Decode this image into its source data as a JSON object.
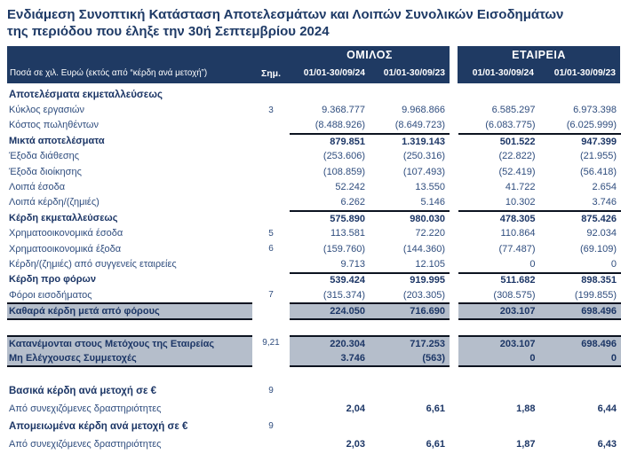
{
  "title": {
    "line1": "Ενδιάμεση Συνοπτική Κατάσταση Αποτελεσμάτων και Λοιπών Συνολικών Εισοδημάτων",
    "line2": "της περιόδου που έληξε την 30ή Σεπτεμβρίου 2024"
  },
  "header": {
    "measure_label": "Ποσά σε χιλ. Ευρώ (εκτός από “κέρδη ανά μετοχή”)",
    "note_label": "Σημ.",
    "group1": "ΟΜΙΛΟΣ",
    "group2": "ΕΤΑΙΡΕΙΑ",
    "periods": [
      "01/01-30/09/24",
      "01/01-30/09/23"
    ]
  },
  "colors": {
    "navy": "#1f3a63",
    "highlight": "#b5becb",
    "text_regular": "#2f4d7e",
    "text_bold": "#1c3666",
    "rule_line": "#0c1320"
  },
  "rows": [
    {
      "style": "section",
      "label": "Αποτελέσματα εκμεταλλεύσεως",
      "note": "",
      "values": [
        "",
        "",
        "",
        ""
      ]
    },
    {
      "style": "normal",
      "label": "Κύκλος εργασιών",
      "note": "3",
      "values": [
        "9.368.777",
        "9.968.866",
        "6.585.297",
        "6.973.398"
      ]
    },
    {
      "style": "normal",
      "label": "Κόστος πωληθέντων",
      "note": "",
      "values": [
        "(8.488.926)",
        "(8.649.723)",
        "(6.083.775)",
        "(6.025.999)"
      ]
    },
    {
      "style": "total",
      "label": "Μικτά αποτελέσματα",
      "note": "",
      "values": [
        "879.851",
        "1.319.143",
        "501.522",
        "947.399"
      ]
    },
    {
      "style": "normal",
      "label": "Έξοδα διάθεσης",
      "note": "",
      "values": [
        "(253.606)",
        "(250.316)",
        "(22.822)",
        "(21.955)"
      ]
    },
    {
      "style": "normal",
      "label": "Έξοδα διοίκησης",
      "note": "",
      "values": [
        "(108.859)",
        "(107.493)",
        "(52.419)",
        "(56.418)"
      ]
    },
    {
      "style": "normal",
      "label": "Λοιπά έσοδα",
      "note": "",
      "values": [
        "52.242",
        "13.550",
        "41.722",
        "2.654"
      ]
    },
    {
      "style": "normal",
      "label": "Λοιπά κέρδη/(ζημιές)",
      "note": "",
      "values": [
        "6.262",
        "5.146",
        "10.302",
        "3.746"
      ]
    },
    {
      "style": "total",
      "label": "Κέρδη εκμεταλλεύσεως",
      "note": "",
      "values": [
        "575.890",
        "980.030",
        "478.305",
        "875.426"
      ]
    },
    {
      "style": "normal",
      "label": "Χρηματοοικονομικά έσοδα",
      "note": "5",
      "values": [
        "113.581",
        "72.220",
        "110.864",
        "92.034"
      ]
    },
    {
      "style": "normal",
      "label": "Χρηματοοικονομικά έξοδα",
      "note": "6",
      "values": [
        "(159.760)",
        "(144.360)",
        "(77.487)",
        "(69.109)"
      ]
    },
    {
      "style": "normal",
      "label": "Κέρδη/(ζημιές) από συγγενείς εταιρείες",
      "note": "",
      "values": [
        "9.713",
        "12.105",
        "0",
        "0"
      ]
    },
    {
      "style": "total",
      "label": "Κέρδη προ φόρων",
      "note": "",
      "values": [
        "539.424",
        "919.995",
        "511.682",
        "898.351"
      ]
    },
    {
      "style": "normal",
      "label": "Φόροι εισοδήματος",
      "note": "7",
      "values": [
        "(315.374)",
        "(203.305)",
        "(308.575)",
        "(199.855)"
      ]
    },
    {
      "style": "highlight",
      "label": "Καθαρά κέρδη μετά από φόρους",
      "note": "",
      "values": [
        "224.050",
        "716.690",
        "203.107",
        "698.496"
      ]
    },
    {
      "style": "spacer",
      "label": "",
      "note": "",
      "values": [
        "",
        "",
        "",
        ""
      ]
    },
    {
      "style": "highlight-top",
      "label": "Κατανέμονται στους Μετόχους της Εταιρείας",
      "note": "9,21",
      "values": [
        "220.304",
        "717.253",
        "203.107",
        "698.496"
      ]
    },
    {
      "style": "highlight-bottom",
      "label": "Μη Ελέγχουσες Συμμετοχές",
      "note": "",
      "values": [
        "3.746",
        "(563)",
        "0",
        "0"
      ]
    },
    {
      "style": "spacer",
      "label": "",
      "note": "",
      "values": [
        "",
        "",
        "",
        ""
      ]
    },
    {
      "style": "eps-head",
      "label": "Βασικά κέρδη ανά μετοχή σε €",
      "note": "9",
      "values": [
        "",
        "",
        "",
        ""
      ]
    },
    {
      "style": "eps-value",
      "label": "Από συνεχιζόμενες δραστηριότητες",
      "note": "",
      "values": [
        "2,04",
        "6,61",
        "1,88",
        "6,44"
      ]
    },
    {
      "style": "eps-head",
      "label": "Απομειωμένα κέρδη ανά μετοχή σε €",
      "note": "9",
      "values": [
        "",
        "",
        "",
        ""
      ]
    },
    {
      "style": "eps-value",
      "label": "Από συνεχιζόμενες δραστηριότητες",
      "note": "",
      "values": [
        "2,03",
        "6,61",
        "1,87",
        "6,43"
      ]
    }
  ]
}
